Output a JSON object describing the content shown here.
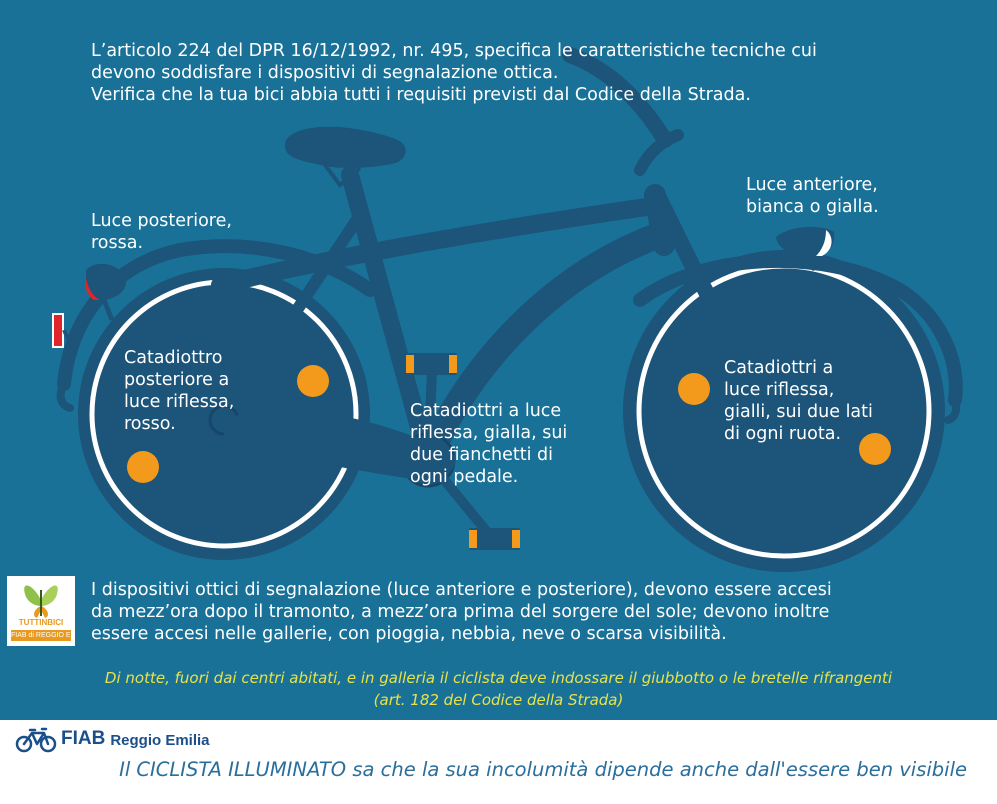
{
  "colors": {
    "background": "#1a7198",
    "bike_frame": "#1d5479",
    "wheel_rim": "#ffffff",
    "reflector_orange": "#f39a1d",
    "rear_red": "#e0262b",
    "note_yellow": "#e7e34a",
    "footer_blue": "#2a6e9c",
    "fiab_navy": "#1b4f8a"
  },
  "intro": {
    "line1": "L’articolo 224 del DPR 16/12/1992, nr. 495, specifica le caratteristiche tecniche cui",
    "line2": "devono soddisfare i dispositivi di segnalazione ottica.",
    "line3": "Verifica che la tua bici abbia tutti i requisiti previsti dal Codice della Strada."
  },
  "labels": {
    "rear_light": [
      "Luce posteriore,",
      "rossa."
    ],
    "front_light": [
      "Luce anteriore,",
      "bianca o gialla."
    ],
    "rear_reflector": [
      "Catadiottro",
      "posteriore a",
      "luce riflessa,",
      "rosso."
    ],
    "pedal_reflector": [
      "Catadiottri a luce",
      "riflessa, gialla, sui",
      "due fianchetti di",
      "ogni pedale."
    ],
    "wheel_reflector": [
      "Catadiottri a",
      "luce riflessa,",
      "gialli, sui due lati",
      "di ogni ruota."
    ]
  },
  "rules": {
    "line1": "I dispositivi ottici di segnalazione (luce anteriore e posteriore), devono essere accesi",
    "line2": "da mezz’ora dopo il tramonto, a mezz’ora prima del sorgere del sole; devono inoltre",
    "line3": "essere accesi nelle gallerie, con pioggia, nebbia, neve o scarsa visibilità."
  },
  "vest_note": {
    "line1": "Di notte, fuori dai centri abitati, e in galleria il ciclista deve indossare il giubbotto o le bretelle rifrangenti",
    "line2": "(art. 182 del Codice della Strada)"
  },
  "small_logo": {
    "line1": "TUTTINBICI",
    "line2": "FIAB di REGGIO E."
  },
  "footer": {
    "org_name": "FIAB",
    "org_city": "Reggio Emilia",
    "tagline": "Il CICLISTA ILLUMINATO sa che la sua incolumità dipende anche dall'essere ben visibile"
  }
}
